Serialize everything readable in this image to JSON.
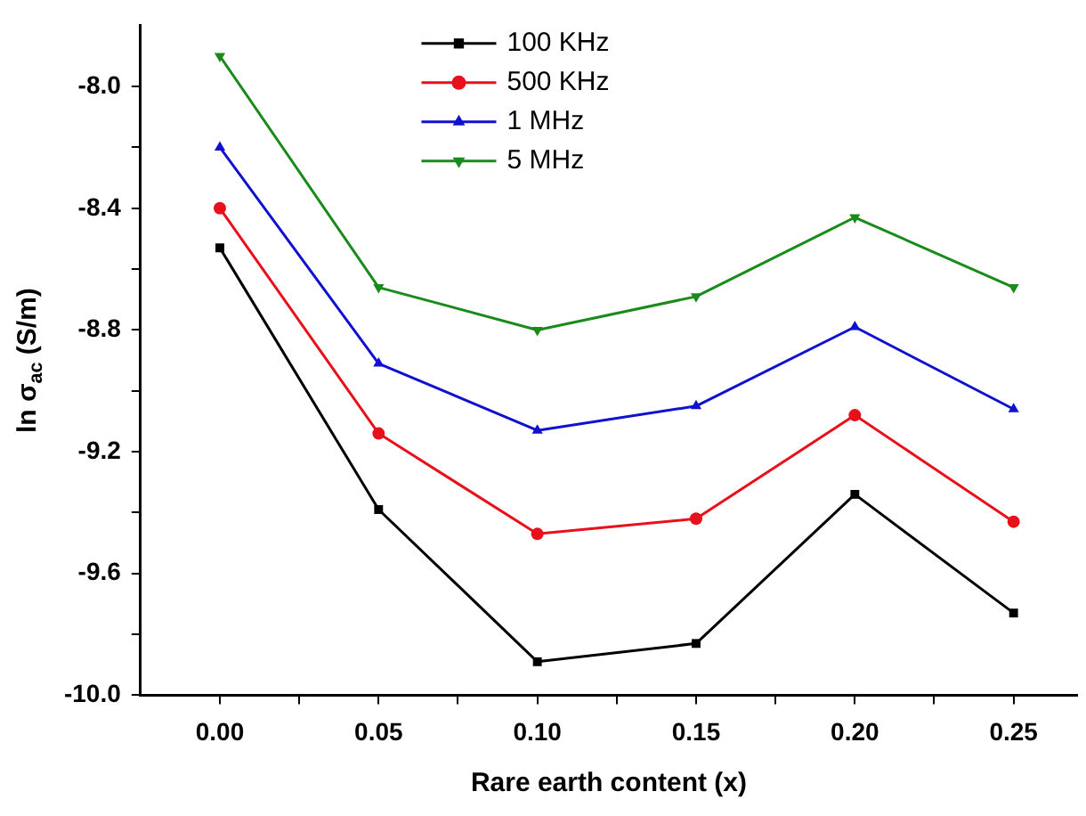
{
  "chart_data": {
    "type": "line",
    "xlabel": "Rare earth content (x)",
    "ylabel": "ln σ$_{ac}$ (S/m)",
    "x": [
      0,
      0.05,
      0.1,
      0.15,
      0.2,
      0.25
    ],
    "series": [
      {
        "name": "100 KHz",
        "color": "#000000",
        "marker": "square",
        "values": [
          -8.53,
          -9.39,
          -9.89,
          -9.83,
          -9.34,
          -9.73
        ]
      },
      {
        "name": "500 KHz",
        "color": "#e8101a",
        "marker": "circle",
        "values": [
          -8.4,
          -9.14,
          -9.47,
          -9.42,
          -9.08,
          -9.43
        ]
      },
      {
        "name": "1 MHz",
        "color": "#1010d0",
        "marker": "triangle",
        "values": [
          -8.2,
          -8.91,
          -9.13,
          -9.05,
          -8.79,
          -9.06
        ]
      },
      {
        "name": "5 MHz",
        "color": "#1a8a1a",
        "marker": "triangle-down",
        "values": [
          -7.9,
          -8.66,
          -8.8,
          -8.69,
          -8.43,
          -8.66
        ]
      }
    ],
    "xlim": [
      -0.025,
      0.27
    ],
    "ylim": [
      -10.0,
      -7.8
    ],
    "xticks": [
      {
        "value": 0,
        "label": "0.00"
      },
      {
        "value": 0.025,
        "label": null
      },
      {
        "value": 0.05,
        "label": "0.05"
      },
      {
        "value": 0.075,
        "label": null
      },
      {
        "value": 0.1,
        "label": "0.10"
      },
      {
        "value": 0.125,
        "label": null
      },
      {
        "value": 0.15,
        "label": "0.15"
      },
      {
        "value": 0.175,
        "label": null
      },
      {
        "value": 0.2,
        "label": "0.20"
      },
      {
        "value": 0.225,
        "label": null
      },
      {
        "value": 0.25,
        "label": "0.25"
      }
    ],
    "yticks": [
      {
        "value": -10,
        "label": "-10.0"
      },
      {
        "value": -9.8,
        "label": null
      },
      {
        "value": -9.6,
        "label": "-9.6"
      },
      {
        "value": -9.4,
        "label": null
      },
      {
        "value": -9.2,
        "label": "-9.2"
      },
      {
        "value": -9.0,
        "label": null
      },
      {
        "value": -8.8,
        "label": "-8.8"
      },
      {
        "value": -8.6,
        "label": null
      },
      {
        "value": -8.4,
        "label": "-8.4"
      },
      {
        "value": -8.2,
        "label": null
      },
      {
        "value": -8.0,
        "label": "-8.0"
      }
    ],
    "grid": false,
    "legend": "top",
    "line_style": "solid"
  }
}
